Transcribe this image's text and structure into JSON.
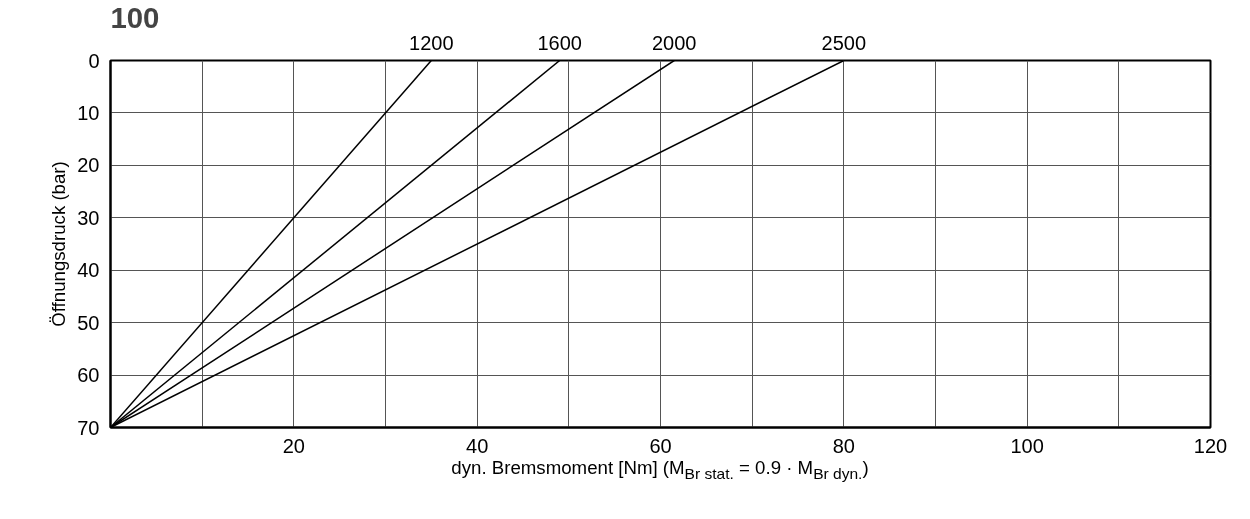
{
  "chart_data": {
    "type": "line",
    "title": "100",
    "xlabel": "dyn. Bremsmoment [Nm] (M$_{Br stat.}$ = 0.9 · M$_{Br dyn.}$)",
    "ylabel": "Öffnungsdruck (bar)",
    "series": [
      {
        "name": "1200",
        "color": "#000000",
        "x": [
          0,
          35
        ],
        "values": [
          70,
          0
        ]
      },
      {
        "name": "1600",
        "color": "#000000",
        "x": [
          0,
          49
        ],
        "values": [
          70,
          0
        ]
      },
      {
        "name": "2000",
        "color": "#000000",
        "x": [
          0,
          61.5
        ],
        "values": [
          70,
          0
        ]
      },
      {
        "name": "2500",
        "color": "#000000",
        "x": [
          0,
          80
        ],
        "values": [
          70,
          0
        ]
      }
    ],
    "xlim": [
      0,
      120
    ],
    "xticks": [
      {
        "value": 10,
        "label": null
      },
      20,
      {
        "value": 30,
        "label": null
      },
      40,
      {
        "value": 50,
        "label": null
      },
      60,
      {
        "value": 70,
        "label": null
      },
      80,
      {
        "value": 90,
        "label": null
      },
      100,
      {
        "value": 110,
        "label": null
      },
      120
    ],
    "ylim": [
      70,
      0
    ],
    "yticks": [
      0,
      10,
      20,
      30,
      40,
      50,
      60,
      70
    ],
    "grid": true,
    "marker": "none",
    "line_style": "solid"
  }
}
